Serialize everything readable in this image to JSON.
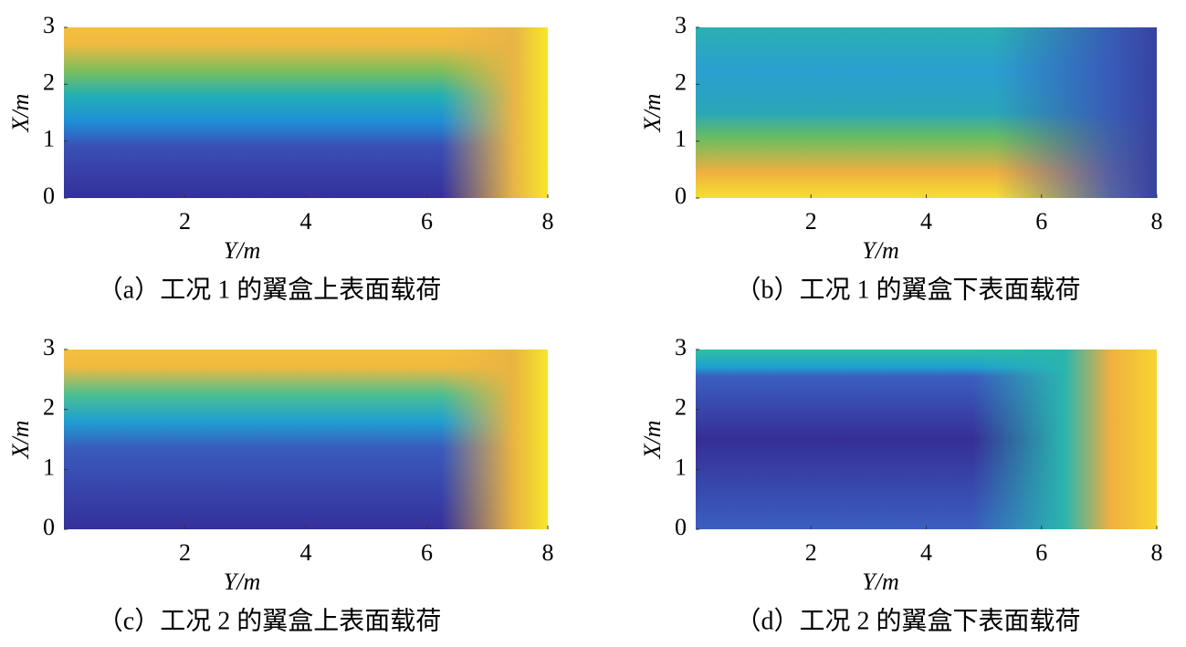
{
  "chart_data": [
    {
      "type": "heatmap",
      "title": "（a）工况 1 的翼盒上表面载荷",
      "xlabel": "Y/m",
      "ylabel": "X/m",
      "xlim": [
        0,
        8
      ],
      "ylim": [
        0,
        3
      ],
      "xticks": [
        2,
        4,
        6,
        8
      ],
      "yticks": [
        0,
        1,
        2,
        3
      ]
    },
    {
      "type": "heatmap",
      "title": "（b）工况 1 的翼盒下表面载荷",
      "xlabel": "Y/m",
      "ylabel": "X/m",
      "xlim": [
        0,
        8
      ],
      "ylim": [
        0,
        3
      ],
      "xticks": [
        2,
        4,
        6,
        8
      ],
      "yticks": [
        0,
        1,
        2,
        3
      ]
    },
    {
      "type": "heatmap",
      "title": "（c）工况 2 的翼盒上表面载荷",
      "xlabel": "Y/m",
      "ylabel": "X/m",
      "xlim": [
        0,
        8
      ],
      "ylim": [
        0,
        3
      ],
      "xticks": [
        2,
        4,
        6,
        8
      ],
      "yticks": [
        0,
        1,
        2,
        3
      ]
    },
    {
      "type": "heatmap",
      "title": "（d）工况 2 的翼盒下表面载荷",
      "xlabel": "Y/m",
      "ylabel": "X/m",
      "xlim": [
        0,
        8
      ],
      "ylim": [
        0,
        3
      ],
      "xticks": [
        2,
        4,
        6,
        8
      ],
      "yticks": [
        0,
        1,
        2,
        3
      ]
    }
  ]
}
